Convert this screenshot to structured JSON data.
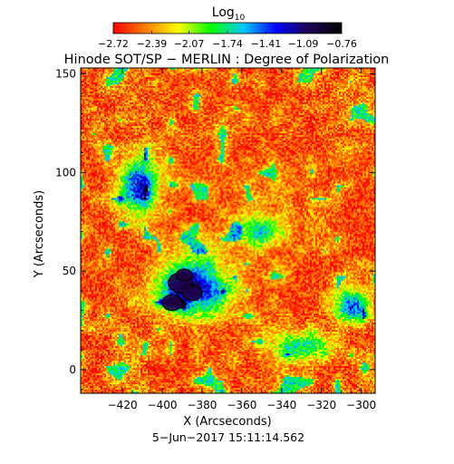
{
  "chart_data": {
    "type": "heatmap",
    "title": "Hinode SOT/SP − MERLIN : Degree of Polarization",
    "xlabel": "X (Arcseconds)",
    "ylabel": "Y (Arcseconds)",
    "timestamp": "5−Jun−2017 15:11:14.562",
    "xlim": [
      -441,
      -293
    ],
    "ylim": [
      -12,
      153
    ],
    "x_ticks": [
      -420,
      -400,
      -380,
      -360,
      -340,
      -320,
      -300
    ],
    "x_tick_labels": [
      "−420",
      "−400",
      "−380",
      "−360",
      "−340",
      "−320",
      "−300"
    ],
    "y_ticks": [
      0,
      50,
      100,
      150
    ],
    "y_tick_labels": [
      "0",
      "50",
      "100",
      "150"
    ],
    "colorbar": {
      "label_main": "Log",
      "label_sub": "10",
      "range": [
        -2.72,
        -0.76
      ],
      "ticks": [
        -2.72,
        -2.39,
        -2.07,
        -1.74,
        -1.41,
        -1.09,
        -0.76
      ],
      "tick_labels": [
        "−2.72",
        "−2.39",
        "−2.07",
        "−1.74",
        "−1.41",
        "−1.09",
        "−0.76"
      ],
      "colors": [
        "#ff0000",
        "#ff7f00",
        "#ffff00",
        "#00ff00",
        "#00c8ff",
        "#0000ff",
        "#1e0050",
        "#000000"
      ]
    },
    "field_features": [
      {
        "name": "main active region",
        "x": -385,
        "y": 42,
        "rx": 16,
        "ry": 13,
        "level": 1.0
      },
      {
        "name": "upper-left network",
        "x": -412,
        "y": 93,
        "rx": 9,
        "ry": 13,
        "level": 0.85
      },
      {
        "name": "right plage",
        "x": -305,
        "y": 32,
        "rx": 8,
        "ry": 8,
        "level": 0.8
      },
      {
        "name": "central network",
        "x": -350,
        "y": 70,
        "rx": 10,
        "ry": 8,
        "level": 0.55
      },
      {
        "name": "lower network",
        "x": -330,
        "y": 12,
        "rx": 14,
        "ry": 7,
        "level": 0.55
      }
    ]
  }
}
